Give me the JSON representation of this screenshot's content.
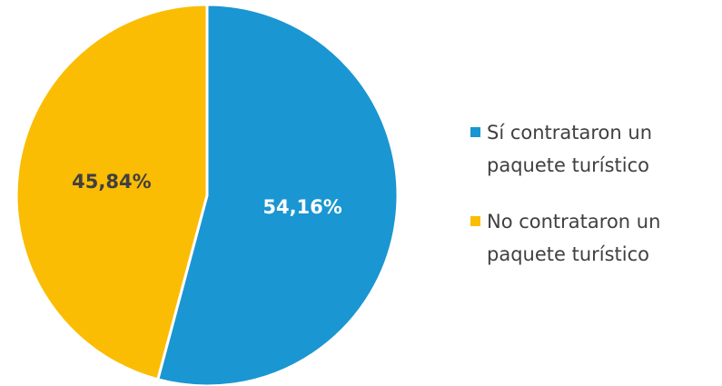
{
  "chart_data": {
    "type": "pie",
    "series": [
      {
        "name": "Sí contrataron un paquete turístico",
        "color": "#1a96d2",
        "values": [
          54.16
        ],
        "value_labels": [
          "54,16%"
        ]
      },
      {
        "name": "No contrataron un paquete turístico",
        "color": "#fbbc04",
        "values": [
          45.84
        ],
        "value_labels": [
          "45,84%"
        ]
      }
    ]
  }
}
